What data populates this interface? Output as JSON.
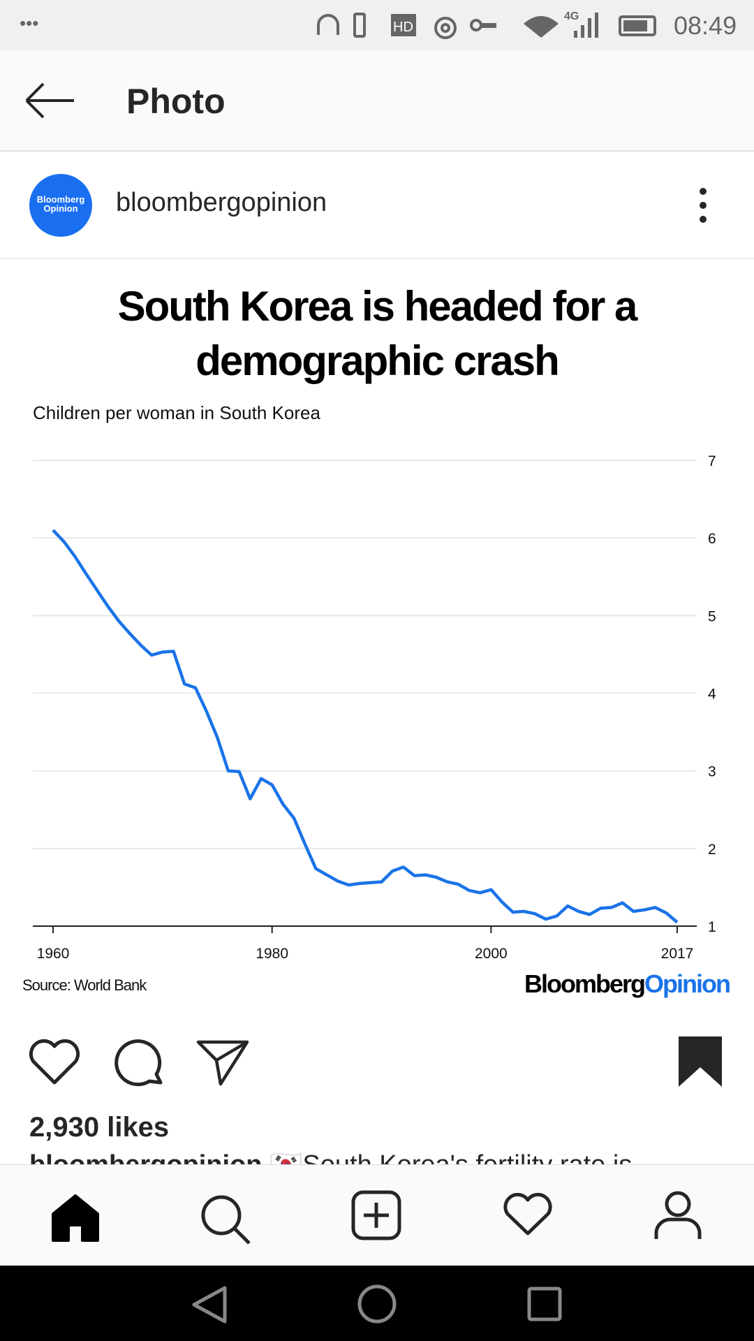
{
  "status_bar": {
    "notification_dots": "•••",
    "network": "4G",
    "hd": "HD",
    "time": "08:49",
    "icons": [
      "headphones-icon",
      "vibrate-icon",
      "hd-icon",
      "eye-icon",
      "vpn-key-icon",
      "wifi-icon",
      "signal-icon",
      "battery-icon"
    ]
  },
  "app_bar": {
    "title": "Photo",
    "back_icon": "arrow-left-icon"
  },
  "post": {
    "avatar_text_1": "Bloomberg",
    "avatar_text_2": "Opinion",
    "username": "bloombergopinion",
    "accent": "#1a6ff0"
  },
  "image": {
    "title_line1": "South Korea is headed for a",
    "title_line2": "demographic crash",
    "subtitle": "Children per woman in South Korea",
    "source": "Source: World Bank",
    "logo_part1": "Bloomberg",
    "logo_part2": "Opinion"
  },
  "chart_data": {
    "type": "line",
    "title": "South Korea is headed for a demographic crash",
    "subtitle": "Children per woman in South Korea",
    "x_ticks": [
      "1960",
      "1980",
      "2000",
      "2017"
    ],
    "y_ticks": [
      "1",
      "2",
      "3",
      "4",
      "5",
      "6",
      "7"
    ],
    "ylim": [
      1,
      7
    ],
    "xlim": [
      1960,
      2017
    ],
    "grid": true,
    "y_axis_position": "right",
    "line_color": "#1a73e8",
    "x": [
      1960,
      1961,
      1962,
      1963,
      1964,
      1965,
      1966,
      1967,
      1968,
      1969,
      1970,
      1971,
      1972,
      1973,
      1974,
      1975,
      1976,
      1977,
      1978,
      1979,
      1980,
      1981,
      1982,
      1983,
      1984,
      1985,
      1986,
      1987,
      1988,
      1989,
      1990,
      1991,
      1992,
      1993,
      1994,
      1995,
      1996,
      1997,
      1998,
      1999,
      2000,
      2001,
      2002,
      2003,
      2004,
      2005,
      2006,
      2007,
      2008,
      2009,
      2010,
      2011,
      2012,
      2013,
      2014,
      2015,
      2016,
      2017
    ],
    "values": [
      6.1,
      5.95,
      5.76,
      5.54,
      5.33,
      5.12,
      4.93,
      4.77,
      4.62,
      4.49,
      4.53,
      4.54,
      4.12,
      4.07,
      3.77,
      3.43,
      3.0,
      2.99,
      2.64,
      2.9,
      2.82,
      2.57,
      2.39,
      2.06,
      1.74,
      1.66,
      1.58,
      1.53,
      1.55,
      1.56,
      1.57,
      1.71,
      1.76,
      1.65,
      1.66,
      1.63,
      1.57,
      1.54,
      1.46,
      1.43,
      1.47,
      1.31,
      1.18,
      1.19,
      1.16,
      1.09,
      1.13,
      1.26,
      1.19,
      1.15,
      1.23,
      1.24,
      1.3,
      1.19,
      1.21,
      1.24,
      1.17,
      1.05
    ]
  },
  "actions": {
    "likes": "2,930 likes",
    "caption_user": "bloombergopinion",
    "caption_text": "🇰🇷South Korea's fertility rate is"
  },
  "bottom_nav": [
    "home-icon",
    "search-icon",
    "add-post-icon",
    "activity-heart-icon",
    "profile-icon"
  ]
}
